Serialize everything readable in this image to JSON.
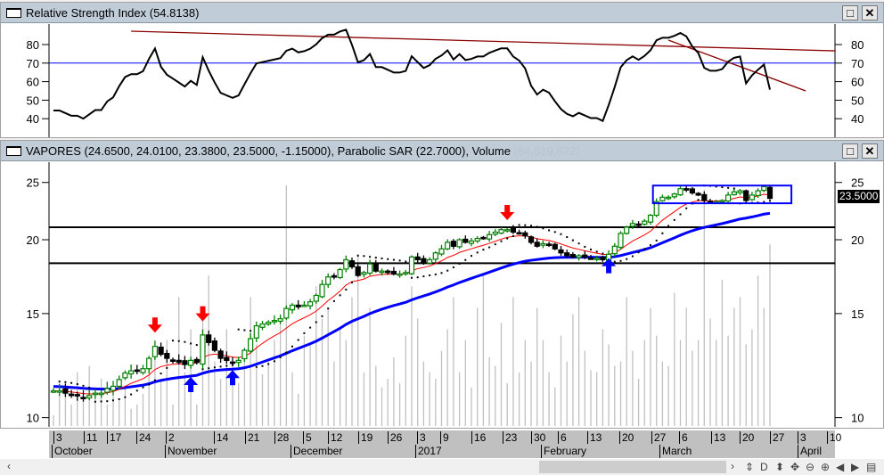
{
  "rsi_window": {
    "title": "Relative Strength Index (54.8138)",
    "y_ticks": [
      "80",
      "70",
      "60",
      "50",
      "40"
    ]
  },
  "price_window": {
    "title": "VAPORES (24.6500, 24.0100, 23.3800, 23.5000, -1.15000), Parabolic SAR (22.7000), Volume",
    "volume_value": "(84,519,872)",
    "y_ticks": [
      "25",
      "20",
      "15",
      "10"
    ],
    "last_price": "23.5000"
  },
  "buttons": {
    "maximize": "□",
    "close": "✕"
  },
  "x_axis": {
    "days": [
      "3",
      "11",
      "17",
      "24",
      "2",
      "14",
      "21",
      "28",
      "5",
      "12",
      "19",
      "26",
      "3",
      "9",
      "16",
      "23",
      "30",
      "6",
      "13",
      "20",
      "27",
      "6",
      "13",
      "20",
      "27",
      "3",
      "10"
    ],
    "months": [
      "October",
      "November",
      "December",
      "2017",
      "February",
      "March",
      "April"
    ]
  },
  "scrollbar": {
    "left": "‹",
    "right": "›",
    "tools": [
      "⇕",
      "D",
      "⬍",
      "✥",
      "⊖",
      "⊕",
      "◀",
      "▶",
      "▤"
    ]
  },
  "colors": {
    "up": "#008000",
    "down": "#000000",
    "ema": "#ff0000",
    "ma": "#0000ff",
    "sar": "#000000",
    "volume": "#c0c0c0",
    "resistance": "#000000",
    "rsi_trend": "#8b0000",
    "rsi_line": "#000000",
    "rsi_level": "#0000ff"
  },
  "chart_data": {
    "type": "candlestick",
    "scale": "log",
    "ylim": [
      10,
      26
    ],
    "rsi_ylim": [
      30,
      90
    ],
    "closes": [
      11.1,
      11.1,
      11.0,
      10.9,
      10.9,
      10.8,
      10.9,
      11.0,
      11.0,
      11.2,
      11.3,
      11.6,
      11.9,
      12.0,
      12.0,
      12.1,
      12.6,
      13.2,
      12.8,
      12.6,
      12.5,
      12.4,
      12.3,
      12.5,
      12.4,
      13.8,
      13.4,
      13.0,
      12.6,
      12.5,
      12.4,
      12.5,
      13.0,
      13.6,
      14.3,
      14.4,
      14.5,
      14.6,
      14.7,
      15.3,
      15.5,
      15.4,
      15.5,
      15.7,
      16.1,
      16.8,
      17.3,
      17.3,
      17.8,
      18.5,
      18.0,
      17.4,
      17.6,
      18.2,
      17.7,
      17.7,
      17.6,
      17.5,
      17.5,
      17.6,
      18.7,
      18.5,
      18.3,
      18.5,
      19.0,
      19.3,
      19.8,
      19.5,
      20.0,
      19.8,
      19.9,
      20.1,
      20.1,
      20.4,
      20.6,
      20.8,
      20.8,
      20.6,
      20.5,
      20.3,
      19.8,
      19.5,
      19.7,
      19.6,
      19.3,
      19.0,
      18.8,
      18.7,
      18.8,
      18.7,
      18.6,
      18.6,
      18.5,
      18.9,
      19.5,
      20.5,
      21.0,
      21.3,
      21.2,
      21.5,
      22.0,
      23.2,
      23.6,
      23.6,
      23.9,
      24.4,
      24.3,
      24.0,
      23.8,
      23.3,
      23.2,
      23.2,
      23.3,
      23.8,
      24.1,
      24.2,
      23.3,
      23.8,
      24.2,
      24.6,
      23.5
    ],
    "volumes_millions": [
      5,
      20,
      18,
      10,
      25,
      15,
      28,
      18,
      22,
      10,
      14,
      12,
      18,
      8,
      10,
      15,
      30,
      32,
      22,
      40,
      10,
      60,
      25,
      45,
      10,
      55,
      70,
      30,
      22,
      45,
      30,
      20,
      35,
      60,
      38,
      24,
      30,
      40,
      50,
      112,
      25,
      15,
      42,
      38,
      65,
      50,
      55,
      30,
      45,
      40,
      60,
      80,
      25,
      55,
      28,
      18,
      22,
      32,
      20,
      42,
      65,
      50,
      30,
      25,
      22,
      35,
      45,
      60,
      25,
      40,
      18,
      55,
      70,
      32,
      28,
      48,
      20,
      60,
      25,
      40,
      30,
      55,
      40,
      25,
      18,
      42,
      30,
      52,
      60,
      35,
      26,
      25,
      45,
      38,
      28,
      30,
      60,
      35,
      22,
      40,
      55,
      42,
      30,
      28,
      62,
      40,
      55,
      35,
      40,
      110,
      50,
      40,
      68,
      42,
      55,
      60,
      38,
      45,
      70,
      55,
      84.5
    ],
    "ema_period": 10,
    "ma_period": 40,
    "resistance_levels": [
      21.0,
      18.25
    ],
    "consolidation_box": {
      "from_bar": 101,
      "to_bar": 123,
      "low": 23.05,
      "high": 24.7
    },
    "sell_arrows_bars": [
      17,
      25,
      76
    ],
    "buy_arrows_bars": [
      23,
      30,
      93
    ],
    "rsi_level": 70,
    "rsi_trendlines": [
      {
        "from": [
          13,
          87.2
        ],
        "to": [
          131,
          76.6
        ]
      },
      {
        "from": [
          103,
          82.4
        ],
        "to": [
          126,
          55
        ]
      }
    ]
  }
}
